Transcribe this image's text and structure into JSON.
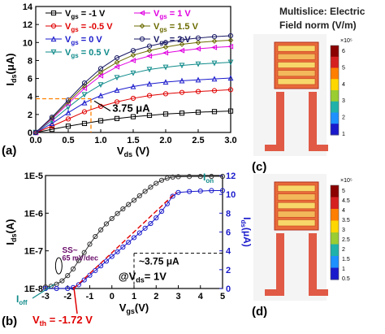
{
  "chart_data": [
    {
      "id": "a",
      "type": "line",
      "panel_label": "(a)",
      "xlabel": "V",
      "xlabel_sub": "ds",
      "xlabel_unit": " (V)",
      "ylabel": "I",
      "ylabel_sub": "ds",
      "ylabel_unit": "(μA)",
      "xlim": [
        0.0,
        3.0
      ],
      "ylim": [
        0,
        14
      ],
      "x_ticks": [
        "0.0",
        "0.5",
        "1.0",
        "1.5",
        "2.0",
        "2.5",
        "3.0"
      ],
      "y_ticks": [
        "0",
        "2",
        "4",
        "6",
        "8",
        "10",
        "12",
        "14"
      ],
      "annotation": "3.75 μA",
      "annotation_point": [
        0.85,
        3.75
      ],
      "series": [
        {
          "name": "-1 V",
          "color": "#000000",
          "marker": "square",
          "x": [
            0,
            0.25,
            0.5,
            0.75,
            1.0,
            1.25,
            1.5,
            1.75,
            2.0,
            2.25,
            2.5,
            2.75,
            3.0
          ],
          "y": [
            0,
            0.35,
            0.7,
            1.0,
            1.3,
            1.55,
            1.75,
            1.9,
            2.05,
            2.15,
            2.25,
            2.32,
            2.38
          ]
        },
        {
          "name": "-0.5 V",
          "color": "#e00000",
          "marker": "circle",
          "x": [
            0,
            0.25,
            0.5,
            0.75,
            1.0,
            1.25,
            1.5,
            1.75,
            2.0,
            2.25,
            2.5,
            2.75,
            3.0
          ],
          "y": [
            0,
            0.7,
            1.5,
            2.3,
            2.9,
            3.4,
            3.8,
            4.1,
            4.3,
            4.45,
            4.55,
            4.65,
            4.75
          ]
        },
        {
          "name": "0 V",
          "color": "#1a1acc",
          "marker": "triangle",
          "x": [
            0,
            0.25,
            0.5,
            0.75,
            1.0,
            1.25,
            1.5,
            1.75,
            2.0,
            2.25,
            2.5,
            2.75,
            3.0
          ],
          "y": [
            0,
            1.0,
            2.2,
            3.3,
            4.1,
            4.7,
            5.1,
            5.4,
            5.6,
            5.75,
            5.85,
            5.95,
            6.05
          ]
        },
        {
          "name": "0.5 V",
          "color": "#0f8a8a",
          "marker": "tri-down",
          "x": [
            0,
            0.25,
            0.5,
            0.75,
            1.0,
            1.25,
            1.5,
            1.75,
            2.0,
            2.25,
            2.5,
            2.75,
            3.0
          ],
          "y": [
            0,
            1.3,
            2.8,
            4.2,
            5.3,
            6.1,
            6.6,
            7.0,
            7.25,
            7.45,
            7.6,
            7.7,
            7.8
          ]
        },
        {
          "name": "1 V",
          "color": "#e000e0",
          "marker": "tri-left",
          "x": [
            0,
            0.25,
            0.5,
            0.75,
            1.0,
            1.25,
            1.5,
            1.75,
            2.0,
            2.25,
            2.5,
            2.75,
            3.0
          ],
          "y": [
            0,
            1.5,
            3.2,
            4.9,
            6.3,
            7.3,
            8.0,
            8.5,
            8.85,
            9.1,
            9.3,
            9.45,
            9.55
          ]
        },
        {
          "name": "1.5 V",
          "color": "#6b6b00",
          "marker": "diamond",
          "x": [
            0,
            0.25,
            0.5,
            0.75,
            1.0,
            1.25,
            1.5,
            1.75,
            2.0,
            2.25,
            2.5,
            2.75,
            3.0
          ],
          "y": [
            0,
            1.6,
            3.4,
            5.2,
            6.7,
            7.8,
            8.6,
            9.1,
            9.5,
            9.8,
            10.0,
            10.15,
            10.25
          ]
        },
        {
          "name": "2 V",
          "color": "#1a1a66",
          "marker": "circle",
          "x": [
            0,
            0.25,
            0.5,
            0.75,
            1.0,
            1.25,
            1.5,
            1.75,
            2.0,
            2.25,
            2.5,
            2.75,
            3.0
          ],
          "y": [
            0,
            1.7,
            3.6,
            5.5,
            7.1,
            8.3,
            9.1,
            9.6,
            10.0,
            10.3,
            10.5,
            10.65,
            10.75
          ]
        }
      ],
      "legend_prefix": "V",
      "legend_prefix_sub": "gs",
      "legend_placement": "top"
    },
    {
      "id": "b",
      "type": "line",
      "panel_label": "(b)",
      "xlabel": "V",
      "xlabel_sub": "gs",
      "xlabel_unit": "(V)",
      "ylabel": "I",
      "ylabel_sub": "ds",
      "ylabel_unit": "(A)",
      "y2label": "I",
      "y2label_sub": "ds",
      "y2label_unit": "(μA)",
      "y_scale": "log",
      "xlim": [
        -3,
        5
      ],
      "ylim": [
        1e-08,
        1e-05
      ],
      "y2lim": [
        0,
        12
      ],
      "x_ticks": [
        "-3",
        "-2",
        "-1",
        "0",
        "1",
        "2",
        "3",
        "4",
        "5"
      ],
      "y_ticks": [
        "1E-8",
        "1E-7",
        "1E-6",
        "1E-5"
      ],
      "y2_ticks": [
        "0",
        "2",
        "4",
        "6",
        "8",
        "10",
        "12"
      ],
      "series": [
        {
          "name": "log",
          "color": "#333333",
          "marker": "circle-open",
          "axis": "left",
          "x": [
            -3,
            -2.75,
            -2.5,
            -2.25,
            -2,
            -1.75,
            -1.5,
            -1.25,
            -1,
            -0.75,
            -0.5,
            -0.25,
            0,
            0.25,
            0.5,
            0.75,
            1,
            1.25,
            1.5,
            1.75,
            2,
            2.25,
            2.5,
            2.75,
            3,
            3.5,
            4,
            4.5,
            5
          ],
          "y": [
            1.1e-08,
            1.15e-08,
            1.3e-08,
            1.6e-08,
            2.2e-08,
            3.3e-08,
            5.5e-08,
            9e-08,
            1.5e-07,
            2.4e-07,
            3.6e-07,
            5.2e-07,
            7.2e-07,
            9.8e-07,
            1.3e-06,
            1.7e-06,
            2.2e-06,
            2.9e-06,
            3.8e-06,
            4.9e-06,
            6.2e-06,
            7.5e-06,
            8.5e-06,
            9.1e-06,
            9.3e-06,
            9.4e-06,
            9.45e-06,
            9.5e-06,
            9.5e-06
          ]
        },
        {
          "name": "linear",
          "color": "#1a1acc",
          "marker": "circle-open",
          "axis": "right",
          "x": [
            -3,
            -2.5,
            -2,
            -1.75,
            -1.5,
            -1.25,
            -1,
            -0.75,
            -0.5,
            -0.25,
            0,
            0.25,
            0.5,
            0.75,
            1,
            1.25,
            1.5,
            1.75,
            2,
            2.25,
            2.5,
            2.75,
            3,
            3.5,
            4,
            4.5,
            5
          ],
          "y": [
            0,
            0,
            0,
            0.1,
            0.4,
            0.9,
            1.4,
            1.9,
            2.4,
            2.9,
            3.4,
            3.9,
            4.4,
            4.9,
            5.4,
            5.9,
            6.4,
            6.9,
            7.5,
            8.2,
            9.0,
            9.8,
            10.2,
            10.3,
            10.35,
            10.4,
            10.4
          ]
        }
      ],
      "fit_line": {
        "color": "#e00000",
        "x": [
          -1.72,
          2.9
        ],
        "y2": [
          0,
          10.2
        ]
      },
      "ss_label": "SS~",
      "ss_value": "65 mV/dec",
      "i_on_label": "I",
      "i_on_sub": "on",
      "i_off_label": "I",
      "i_off_sub": "off",
      "current_marker": "~3.75 μA",
      "current_marker_point": [
        1.0,
        3.75
      ],
      "condition": "@V",
      "condition_sub": "ds",
      "condition_value": "= 1V",
      "vth_label": "V",
      "vth_sub": "th",
      "vth_value": " = -1.72 V",
      "vth_point": -1.72
    }
  ],
  "simulation": {
    "title": "Multislice: Electric Field norm (V/m)",
    "top": {
      "panel_label": "(c)",
      "colorbar_ticks": [
        "6",
        "5",
        "4",
        "3",
        "2",
        "1"
      ],
      "colorbar_exponent": "×10⁵"
    },
    "bottom": {
      "panel_label": "(d)",
      "colorbar_ticks": [
        "5",
        "4.5",
        "4",
        "3.5",
        "3",
        "2.5",
        "2",
        "1.5",
        "1",
        "0.5"
      ],
      "colorbar_exponent": "×10⁵"
    }
  }
}
